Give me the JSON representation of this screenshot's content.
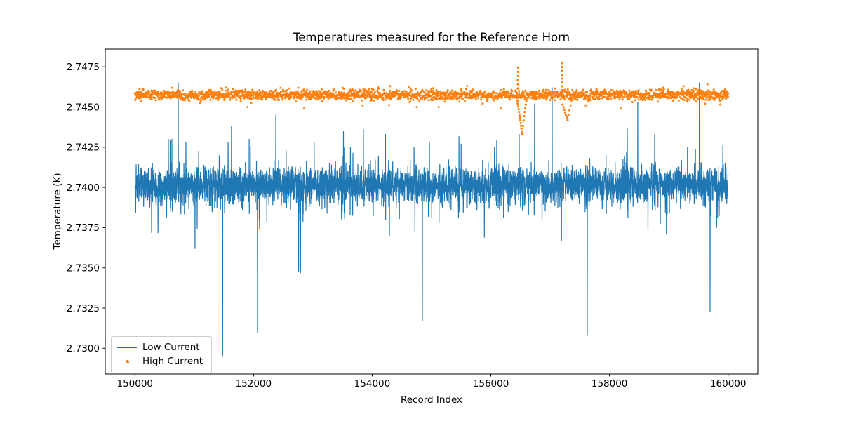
{
  "chart_data": {
    "type": "line+scatter",
    "title": "Temperatures measured for the Reference Horn",
    "xlabel": "Record Index",
    "ylabel": "Temperature (K)",
    "xlim": [
      149500,
      160500
    ],
    "ylim": [
      2.7284,
      2.7486
    ],
    "grid": false,
    "x_ticks": [
      {
        "v": 150000,
        "label": "150000"
      },
      {
        "v": 152000,
        "label": "152000"
      },
      {
        "v": 154000,
        "label": "154000"
      },
      {
        "v": 156000,
        "label": "156000"
      },
      {
        "v": 158000,
        "label": "158000"
      },
      {
        "v": 160000,
        "label": "160000"
      }
    ],
    "y_ticks": [
      {
        "v": 2.73,
        "label": "2.7300"
      },
      {
        "v": 2.7325,
        "label": "2.7325"
      },
      {
        "v": 2.735,
        "label": "2.7350"
      },
      {
        "v": 2.7375,
        "label": "2.7375"
      },
      {
        "v": 2.74,
        "label": "2.7400"
      },
      {
        "v": 2.7425,
        "label": "2.7425"
      },
      {
        "v": 2.745,
        "label": "2.7450"
      },
      {
        "v": 2.7475,
        "label": "2.7475"
      }
    ],
    "legend": {
      "position": "lower left",
      "items": [
        {
          "label": "Low Current",
          "color": "#1f77b4",
          "marker": "line"
        },
        {
          "label": "High Current",
          "color": "#ff7f0e",
          "marker": "dot"
        }
      ]
    },
    "series": [
      {
        "name": "Low Current",
        "plot": "line",
        "color": "#1f77b4",
        "x_start": 150000,
        "x_end": 160000,
        "baseline": 2.7402,
        "band_halfwidth": 0.0013,
        "noise_sigma": 0.00048,
        "up_spikes": [
          [
            150564,
            2.743
          ],
          [
            150623,
            2.743
          ],
          [
            150730,
            2.7465
          ],
          [
            150860,
            2.7428
          ],
          [
            151570,
            2.7428
          ],
          [
            151629,
            2.7438
          ],
          [
            151925,
            2.743
          ],
          [
            152374,
            2.7445
          ],
          [
            153515,
            2.7435
          ],
          [
            153852,
            2.7436
          ],
          [
            154225,
            2.7433
          ],
          [
            154964,
            2.7428
          ],
          [
            155500,
            2.7427
          ],
          [
            156100,
            2.7429
          ],
          [
            156478,
            2.7433
          ],
          [
            156738,
            2.7452
          ],
          [
            157034,
            2.7462
          ],
          [
            158299,
            2.7437
          ],
          [
            158477,
            2.7453
          ],
          [
            158761,
            2.7433
          ],
          [
            159515,
            2.7465
          ],
          [
            159910,
            2.7426
          ]
        ],
        "down_spikes": [
          [
            150280,
            2.7372
          ],
          [
            151014,
            2.7362
          ],
          [
            151480,
            2.7295
          ],
          [
            152067,
            2.731
          ],
          [
            152760,
            2.7348
          ],
          [
            152792,
            2.7347
          ],
          [
            154290,
            2.737
          ],
          [
            154846,
            2.7317
          ],
          [
            155890,
            2.7369
          ],
          [
            157190,
            2.7367
          ],
          [
            157625,
            2.7308
          ],
          [
            158960,
            2.7371
          ],
          [
            159695,
            2.7323
          ]
        ]
      },
      {
        "name": "High Current",
        "plot": "scatter",
        "color": "#ff7f0e",
        "x_start": 150000,
        "x_end": 160000,
        "baseline": 2.74575,
        "noise_sigma": 0.00016,
        "anomalies": [
          {
            "x": 156470,
            "dip_to": 2.7433,
            "rise_to": 2.7474
          },
          {
            "x": 157210,
            "dip_to": 2.7441,
            "rise_to": 2.7477
          }
        ],
        "low_outliers": [
          [
            151900,
            2.745
          ],
          [
            152850,
            2.7449
          ],
          [
            153840,
            2.7451
          ],
          [
            154750,
            2.745
          ],
          [
            155120,
            2.745
          ],
          [
            156170,
            2.7449
          ],
          [
            157600,
            2.7451
          ],
          [
            158190,
            2.7449
          ],
          [
            159612,
            2.7452
          ]
        ],
        "high_outliers": [
          [
            153500,
            2.7462
          ],
          [
            154300,
            2.7463
          ],
          [
            155600,
            2.7463
          ],
          [
            158900,
            2.7462
          ],
          [
            159250,
            2.7463
          ],
          [
            159650,
            2.7464
          ],
          [
            159950,
            2.7461
          ]
        ]
      }
    ]
  }
}
